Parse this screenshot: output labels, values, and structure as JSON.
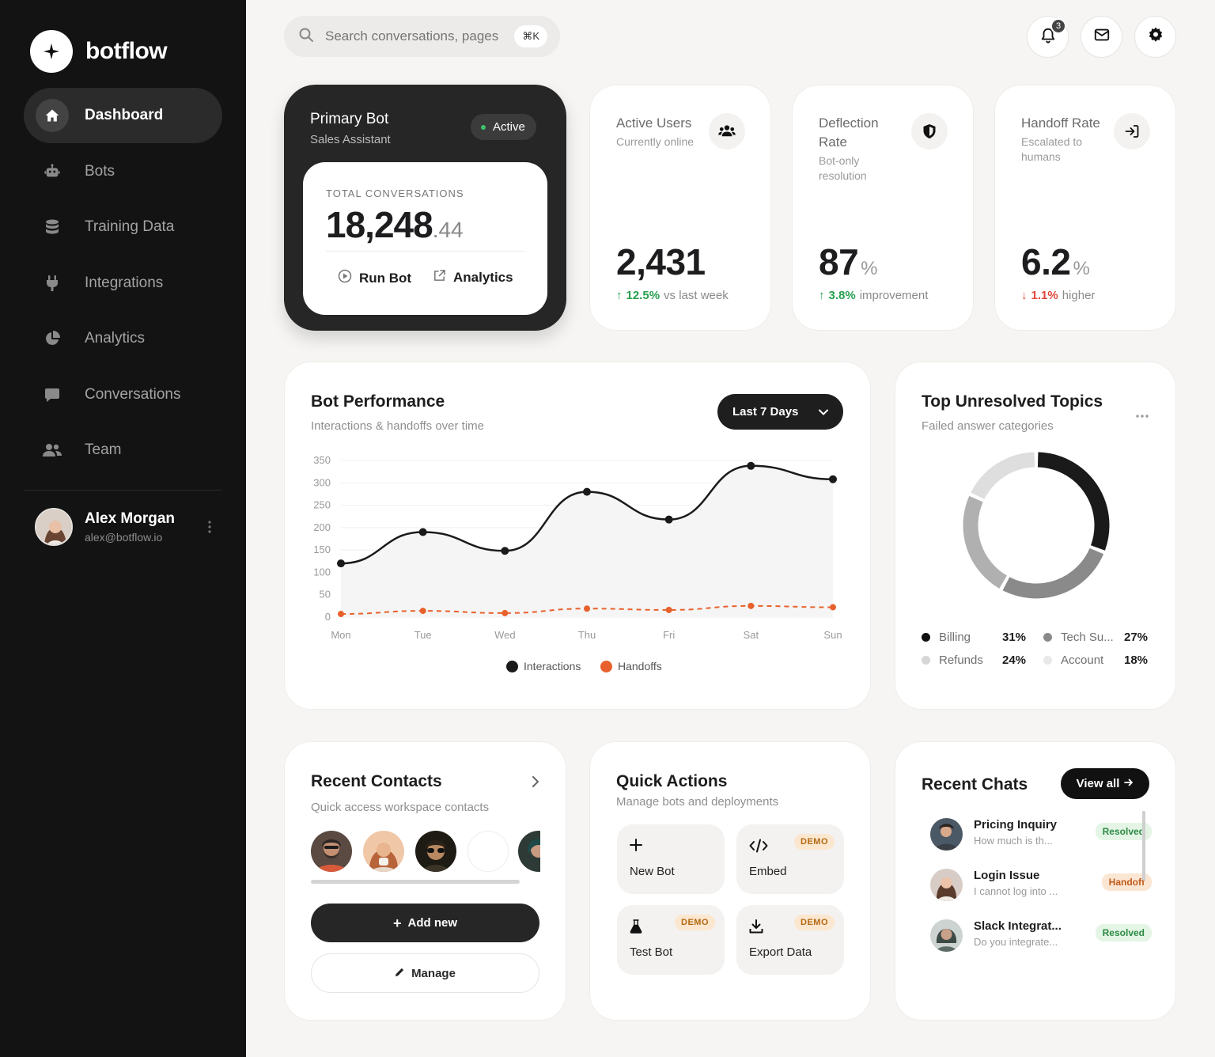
{
  "app": {
    "name": "botflow"
  },
  "sidebar": {
    "items": [
      {
        "label": "Dashboard",
        "icon": "home-icon",
        "active": true
      },
      {
        "label": "Bots",
        "icon": "robot-icon"
      },
      {
        "label": "Training Data",
        "icon": "database-icon"
      },
      {
        "label": "Integrations",
        "icon": "plug-icon"
      },
      {
        "label": "Analytics",
        "icon": "pie-chart-icon"
      },
      {
        "label": "Conversations",
        "icon": "chat-bubble-icon"
      },
      {
        "label": "Team",
        "icon": "users-icon"
      }
    ],
    "user": {
      "name": "Alex Morgan",
      "email": "alex@botflow.io"
    }
  },
  "header": {
    "search_placeholder": "Search conversations, pages...",
    "shortcut": "⌘K",
    "notification_count": "3"
  },
  "primary_bot": {
    "title": "Primary Bot",
    "subtitle": "Sales Assistant",
    "status": "Active",
    "total_label": "TOTAL CONVERSATIONS",
    "total_value": "18,248",
    "total_decimal": ".44",
    "run_label": "Run Bot",
    "analytics_label": "Analytics"
  },
  "stats": [
    {
      "title": "Active Users",
      "subtitle": "Currently online",
      "value": "2,431",
      "unit": "",
      "delta": "12.5%",
      "delta_text": "vs last week",
      "direction": "up",
      "icon": "users-icon"
    },
    {
      "title": "Deflection Rate",
      "subtitle": "Bot-only resolution",
      "value": "87",
      "unit": "%",
      "delta": "3.8%",
      "delta_text": "improvement",
      "direction": "up",
      "icon": "shield-icon"
    },
    {
      "title": "Handoff Rate",
      "subtitle": "Escalated to humans",
      "value": "6.2",
      "unit": "%",
      "delta": "1.1%",
      "delta_text": "higher",
      "direction": "down",
      "icon": "sign-in-icon"
    }
  ],
  "performance": {
    "title": "Bot Performance",
    "subtitle": "Interactions & handoffs over time",
    "range_label": "Last 7 Days"
  },
  "chart_data": {
    "type": "line",
    "categories": [
      "Mon",
      "Tue",
      "Wed",
      "Thu",
      "Fri",
      "Sat",
      "Sun"
    ],
    "series": [
      {
        "name": "Interactions",
        "values": [
          120,
          190,
          148,
          280,
          218,
          338,
          308
        ],
        "color": "#1a1a1a"
      },
      {
        "name": "Handoffs",
        "values": [
          7,
          14,
          9,
          19,
          16,
          25,
          22
        ],
        "color": "#e8612c"
      }
    ],
    "yticks": [
      0,
      50,
      100,
      150,
      200,
      250,
      300,
      350
    ],
    "ylim": [
      0,
      350
    ],
    "grid": true,
    "legend_position": "bottom"
  },
  "topics": {
    "title": "Top Unresolved Topics",
    "subtitle": "Failed answer categories",
    "items": [
      {
        "name": "Billing",
        "pct": "31%",
        "value": 31,
        "color": "#1a1a1a"
      },
      {
        "name": "Tech Su...",
        "pct": "27%",
        "value": 27,
        "color": "#8a8a8a"
      },
      {
        "name": "Refunds",
        "pct": "24%",
        "value": 24,
        "color": "#b0b0b0"
      },
      {
        "name": "Account",
        "pct": "18%",
        "value": 18,
        "color": "#dedede"
      }
    ]
  },
  "contacts": {
    "title": "Recent Contacts",
    "subtitle": "Quick access workspace contacts",
    "add_label": "Add new",
    "manage_label": "Manage"
  },
  "quick_actions": {
    "title": "Quick Actions",
    "subtitle": "Manage bots and deployments",
    "items": [
      {
        "label": "New Bot",
        "icon": "plus-icon",
        "badge": ""
      },
      {
        "label": "Embed",
        "icon": "code-icon",
        "badge": "DEMO"
      },
      {
        "label": "Test Bot",
        "icon": "flask-icon",
        "badge": "DEMO"
      },
      {
        "label": "Export Data",
        "icon": "download-icon",
        "badge": "DEMO"
      }
    ]
  },
  "chats": {
    "title": "Recent Chats",
    "view_all": "View all",
    "items": [
      {
        "name": "Pricing Inquiry",
        "message": "How much is th...",
        "status": "Resolved"
      },
      {
        "name": "Login Issue",
        "message": "I cannot log into ...",
        "status": "Handoff"
      },
      {
        "name": "Slack Integrat...",
        "message": "Do you integrate...",
        "status": "Resolved"
      }
    ]
  }
}
